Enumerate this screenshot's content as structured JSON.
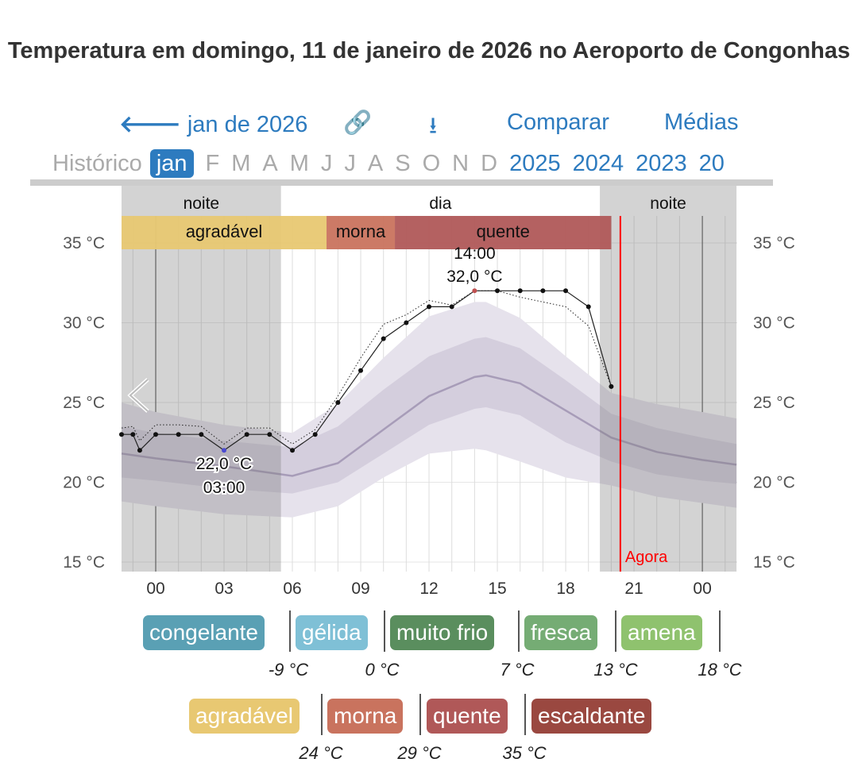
{
  "title": "Temperatura em domingo, 11 de janeiro de 2026 no Aeroporto de Congonhas",
  "nav": {
    "back": "jan de 2026",
    "link_icon": "link-icon",
    "download_icon": "download-icon",
    "compare": "Comparar",
    "averages": "Médias"
  },
  "months": {
    "history": "Histórico",
    "items": [
      "jan",
      "F",
      "M",
      "A",
      "M",
      "J",
      "J",
      "A",
      "S",
      "O",
      "N",
      "D"
    ],
    "years": [
      "2025",
      "2024",
      "2023",
      "20"
    ]
  },
  "chart_data": {
    "type": "line",
    "title": "Temperatura em domingo, 11 de janeiro de 2026 no Aeroporto de Congonhas",
    "ylim": [
      15,
      36.5
    ],
    "xlim": [
      -1.5,
      25.5
    ],
    "yticks": [
      "15 °C",
      "20 °C",
      "25 °C",
      "30 °C",
      "35 °C"
    ],
    "ytick_values": [
      15,
      20,
      25,
      30,
      35
    ],
    "xticks": [
      "00",
      "03",
      "06",
      "09",
      "12",
      "15",
      "18",
      "21",
      "00"
    ],
    "xtick_values": [
      0,
      3,
      6,
      9,
      12,
      15,
      18,
      21,
      24
    ],
    "periods": [
      {
        "label": "noite",
        "from": -1.5,
        "to": 5.5
      },
      {
        "label": "dia",
        "from": 5.5,
        "to": 19.5
      },
      {
        "label": "noite",
        "from": 19.5,
        "to": 25.5
      }
    ],
    "categories_bar": [
      {
        "label": "agradável",
        "from": -1.5,
        "to": 7.5,
        "color": "#e8c872"
      },
      {
        "label": "morna",
        "from": 7.5,
        "to": 10.5,
        "color": "#c9735e"
      },
      {
        "label": "quente",
        "from": 10.5,
        "to": 20,
        "color": "#b05858"
      }
    ],
    "observed": {
      "x": [
        -1.5,
        -1,
        -0.7,
        0,
        1,
        2,
        3,
        4,
        5,
        6,
        7,
        8,
        9,
        10,
        11,
        12,
        13,
        14,
        15,
        16,
        17,
        18,
        19,
        20
      ],
      "y": [
        23,
        23,
        22,
        23,
        23,
        23,
        22,
        23,
        23,
        22,
        23,
        25,
        27,
        29,
        30,
        31,
        31,
        32,
        32,
        32,
        32,
        32,
        31,
        26
      ]
    },
    "forecast_dotted": {
      "x": [
        -1.5,
        -1,
        -0.7,
        0,
        1,
        2,
        3,
        4,
        5,
        6,
        7,
        8,
        9,
        10,
        11,
        12,
        13,
        14,
        15,
        16,
        17,
        18,
        19,
        20
      ],
      "y": [
        23.4,
        23.5,
        22.6,
        23.6,
        23.6,
        23.5,
        22.4,
        23.4,
        23.4,
        22.4,
        23.3,
        25.4,
        27.8,
        29.9,
        30.5,
        31.4,
        31.1,
        32,
        32,
        31.6,
        31.3,
        31,
        29.8,
        26
      ]
    },
    "average": {
      "x": [
        -1.5,
        0,
        3,
        6,
        8,
        10,
        12,
        14,
        14.5,
        16,
        18,
        20,
        22,
        24,
        25.5
      ],
      "mean": [
        21.8,
        21.5,
        21,
        20.4,
        21.2,
        23.3,
        25.4,
        26.6,
        26.7,
        26.2,
        24.5,
        22.8,
        21.9,
        21.4,
        21.1
      ],
      "p25": [
        20.3,
        20.1,
        19.6,
        19.3,
        20,
        21.8,
        23.6,
        24.6,
        24.7,
        24.2,
        22.5,
        21.3,
        20.5,
        20.1,
        19.9
      ],
      "p75": [
        23.5,
        23.1,
        22.6,
        22.2,
        23.5,
        25.8,
        27.9,
        29,
        29.1,
        28.4,
        26.4,
        24.3,
        23.4,
        22.8,
        22.4
      ],
      "p10": [
        18.8,
        18.5,
        18,
        17.8,
        18.5,
        20.3,
        21.8,
        22.1,
        22,
        21.3,
        20.3,
        19.8,
        19.1,
        18.7,
        18.4
      ],
      "p90": [
        25,
        24.4,
        23.6,
        23.1,
        24.9,
        27.8,
        30.4,
        31.3,
        31.3,
        30.3,
        27.9,
        25.6,
        24.9,
        24.4,
        24
      ]
    },
    "annotations": [
      {
        "text_time": "14:00",
        "text_value": "32,0 °C",
        "x": 14,
        "y": 32
      },
      {
        "text_time": "03:00",
        "text_value": "22,0 °C",
        "x": 3,
        "y": 22
      }
    ],
    "now_label": "Agora",
    "now_x": 20.4
  },
  "legend": {
    "row1": [
      {
        "label": "congelante",
        "color": "#5aa0b4"
      },
      {
        "label": "gélida",
        "color": "#7fc0d6"
      },
      {
        "label": "muito frio",
        "color": "#5a8e5e"
      },
      {
        "label": "fresca",
        "color": "#75ac74"
      },
      {
        "label": "amena",
        "color": "#8fc26e"
      }
    ],
    "row1_ticks": [
      "-9 °C",
      "0 °C",
      "7 °C",
      "13 °C",
      "18 °C"
    ],
    "row2": [
      {
        "label": "agradável",
        "color": "#e8c872"
      },
      {
        "label": "morna",
        "color": "#c9735e"
      },
      {
        "label": "quente",
        "color": "#b05858"
      },
      {
        "label": "escaldante",
        "color": "#9a4840"
      }
    ],
    "row2_ticks": [
      "24 °C",
      "29 °C",
      "35 °C"
    ]
  }
}
